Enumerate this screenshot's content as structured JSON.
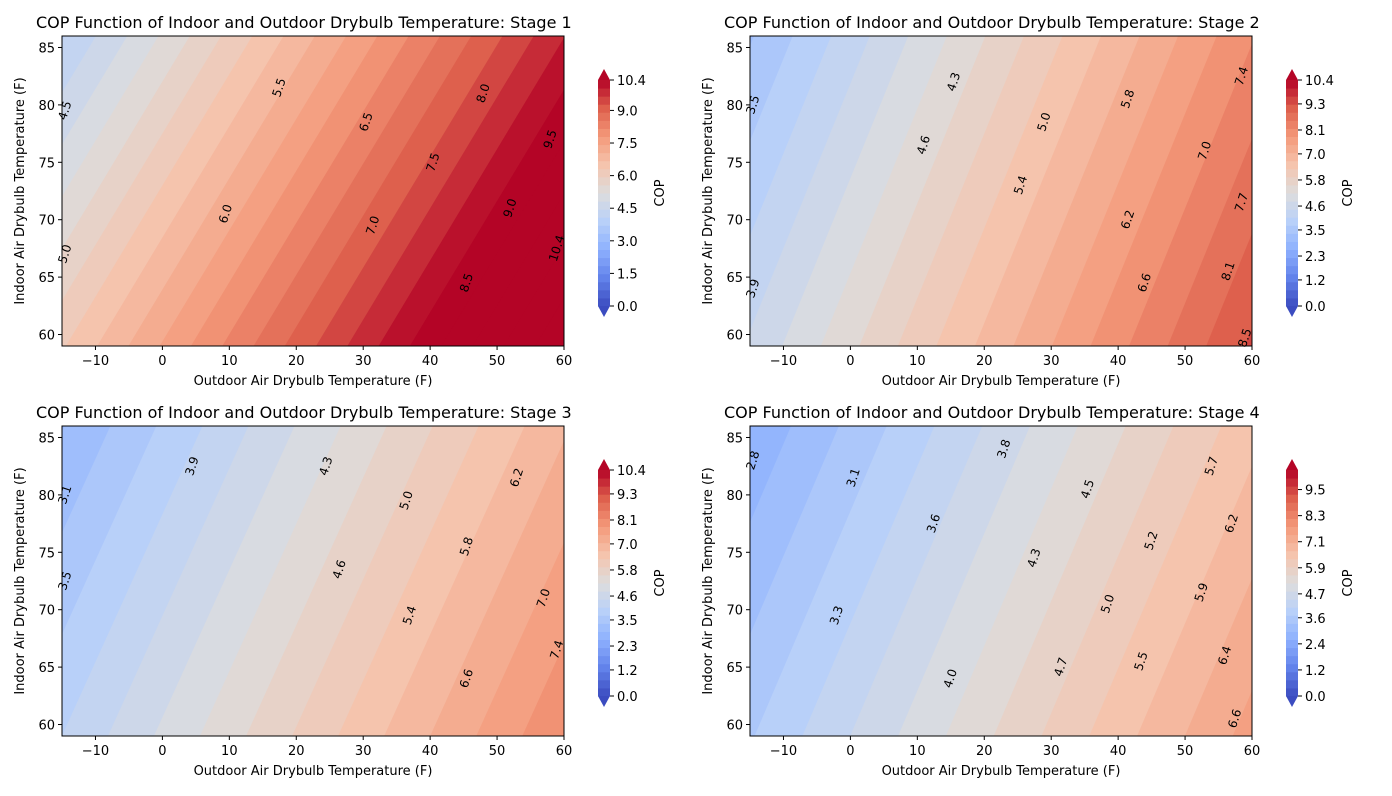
{
  "chart_data": [
    {
      "type": "contourf",
      "title": "COP Function of Indoor and Outdoor Drybulb Temperature: Stage 1",
      "xlabel": "Outdoor Air Drybulb Temperature (F)",
      "ylabel": "Indoor Air Drybulb Temperature (F)",
      "xlim": [
        -15,
        60
      ],
      "ylim": [
        59,
        86
      ],
      "xticks": [
        -10,
        0,
        10,
        20,
        30,
        40,
        50,
        60
      ],
      "yticks": [
        60,
        65,
        70,
        75,
        80,
        85
      ],
      "colormap": "coolwarm",
      "colorbar": {
        "label": "COP",
        "range": [
          0.0,
          10.4
        ],
        "ticks": [
          0.0,
          1.5,
          3.0,
          4.5,
          6.0,
          7.5,
          9.0,
          10.4
        ],
        "extend": "both"
      },
      "contour_labels": [
        {
          "value": "4.5",
          "x": -14.5,
          "y": 79.5
        },
        {
          "value": "5.0",
          "x": -14.5,
          "y": 67
        },
        {
          "value": "5.5",
          "x": 17.5,
          "y": 81.5
        },
        {
          "value": "6.0",
          "x": 9.5,
          "y": 70.5
        },
        {
          "value": "6.5",
          "x": 30.5,
          "y": 78.5
        },
        {
          "value": "7.0",
          "x": 31.5,
          "y": 69.5
        },
        {
          "value": "7.5",
          "x": 40.5,
          "y": 75
        },
        {
          "value": "8.0",
          "x": 48,
          "y": 81
        },
        {
          "value": "8.5",
          "x": 45.5,
          "y": 64.5
        },
        {
          "value": "9.0",
          "x": 52,
          "y": 71
        },
        {
          "value": "9.5",
          "x": 58,
          "y": 77
        },
        {
          "value": "10.4",
          "x": 59,
          "y": 67.5
        }
      ],
      "levels_min": 4.0,
      "levels_max": 10.4,
      "field": {
        "z_at_xmin_ymax": 4.0,
        "z_at_xmax_ymin": 10.4,
        "x_gain": 0.0795,
        "y_gain": -0.082,
        "ref_x": -15,
        "ref_y": 86,
        "ref_z": 4.05
      }
    },
    {
      "type": "contourf",
      "title": "COP Function of Indoor and Outdoor Drybulb Temperature: Stage 2",
      "xlabel": "Outdoor Air Drybulb Temperature (F)",
      "ylabel": "Indoor Air Drybulb Temperature (F)",
      "xlim": [
        -15,
        60
      ],
      "ylim": [
        59,
        86
      ],
      "xticks": [
        -10,
        0,
        10,
        20,
        30,
        40,
        50,
        60
      ],
      "yticks": [
        60,
        65,
        70,
        75,
        80,
        85
      ],
      "colormap": "coolwarm",
      "colorbar": {
        "label": "COP",
        "range": [
          0.0,
          10.4
        ],
        "ticks": [
          0.0,
          1.2,
          2.3,
          3.5,
          4.6,
          5.8,
          7.0,
          8.1,
          9.3,
          10.4
        ],
        "extend": "both"
      },
      "contour_labels": [
        {
          "value": "3.5",
          "x": -14.5,
          "y": 80
        },
        {
          "value": "3.9",
          "x": -14.5,
          "y": 64
        },
        {
          "value": "4.3",
          "x": 15.5,
          "y": 82
        },
        {
          "value": "4.6",
          "x": 11,
          "y": 76.5
        },
        {
          "value": "5.0",
          "x": 29,
          "y": 78.5
        },
        {
          "value": "5.4",
          "x": 25.5,
          "y": 73
        },
        {
          "value": "5.8",
          "x": 41.5,
          "y": 80.5
        },
        {
          "value": "6.2",
          "x": 41.5,
          "y": 70
        },
        {
          "value": "6.6",
          "x": 44,
          "y": 64.5
        },
        {
          "value": "7.0",
          "x": 53,
          "y": 76
        },
        {
          "value": "7.4",
          "x": 58.5,
          "y": 82.5
        },
        {
          "value": "7.7",
          "x": 58.5,
          "y": 71.5
        },
        {
          "value": "8.1",
          "x": 56.5,
          "y": 65.5
        },
        {
          "value": "8.5",
          "x": 59,
          "y": 59.7
        }
      ],
      "field": {
        "ref_x": -15,
        "ref_y": 86,
        "ref_z": 3.3,
        "x_gain": 0.0645,
        "y_gain": -0.045
      }
    },
    {
      "type": "contourf",
      "title": "COP Function of Indoor and Outdoor Drybulb Temperature: Stage 3",
      "xlabel": "Outdoor Air Drybulb Temperature (F)",
      "ylabel": "Indoor Air Drybulb Temperature (F)",
      "xlim": [
        -15,
        60
      ],
      "ylim": [
        59,
        86
      ],
      "xticks": [
        -10,
        0,
        10,
        20,
        30,
        40,
        50,
        60
      ],
      "yticks": [
        60,
        65,
        70,
        75,
        80,
        85
      ],
      "colormap": "coolwarm",
      "colorbar": {
        "label": "COP",
        "range": [
          0.0,
          10.4
        ],
        "ticks": [
          0.0,
          1.2,
          2.3,
          3.5,
          4.6,
          5.8,
          7.0,
          8.1,
          9.3,
          10.4
        ],
        "extend": "both"
      },
      "contour_labels": [
        {
          "value": "3.1",
          "x": -14.5,
          "y": 80
        },
        {
          "value": "3.5",
          "x": -14.5,
          "y": 72.5
        },
        {
          "value": "3.9",
          "x": 4.5,
          "y": 82.5
        },
        {
          "value": "4.3",
          "x": 24.5,
          "y": 82.5
        },
        {
          "value": "4.6",
          "x": 26.5,
          "y": 73.5
        },
        {
          "value": "5.0",
          "x": 36.5,
          "y": 79.5
        },
        {
          "value": "5.4",
          "x": 37,
          "y": 69.5
        },
        {
          "value": "5.8",
          "x": 45.5,
          "y": 75.5
        },
        {
          "value": "6.2",
          "x": 53,
          "y": 81.5
        },
        {
          "value": "6.6",
          "x": 45.5,
          "y": 64
        },
        {
          "value": "7.0",
          "x": 57,
          "y": 71
        },
        {
          "value": "7.4",
          "x": 59,
          "y": 66.5
        }
      ],
      "field": {
        "ref_x": -15,
        "ref_y": 86,
        "ref_z": 2.95,
        "x_gain": 0.054,
        "y_gain": -0.042
      }
    },
    {
      "type": "contourf",
      "title": "COP Function of Indoor and Outdoor Drybulb Temperature: Stage 4",
      "xlabel": "Outdoor Air Drybulb Temperature (F)",
      "ylabel": "Indoor Air Drybulb Temperature (F)",
      "xlim": [
        -15,
        60
      ],
      "ylim": [
        59,
        86
      ],
      "xticks": [
        -10,
        0,
        10,
        20,
        30,
        40,
        50,
        60
      ],
      "yticks": [
        60,
        65,
        70,
        75,
        80,
        85
      ],
      "colormap": "coolwarm",
      "colorbar": {
        "label": "COP",
        "range": [
          0.0,
          10.4
        ],
        "ticks": [
          0.0,
          1.2,
          2.4,
          3.6,
          4.7,
          5.9,
          7.1,
          8.3,
          9.5
        ],
        "extend": "both"
      },
      "contour_labels": [
        {
          "value": "2.8",
          "x": -14.5,
          "y": 83
        },
        {
          "value": "3.1",
          "x": 0.5,
          "y": 81.5
        },
        {
          "value": "3.3",
          "x": -2,
          "y": 69.5
        },
        {
          "value": "3.6",
          "x": 12.5,
          "y": 77.5
        },
        {
          "value": "3.8",
          "x": 23,
          "y": 84
        },
        {
          "value": "4.0",
          "x": 15,
          "y": 64
        },
        {
          "value": "4.3",
          "x": 27.5,
          "y": 74.5
        },
        {
          "value": "4.5",
          "x": 35.5,
          "y": 80.5
        },
        {
          "value": "4.7",
          "x": 31.5,
          "y": 65
        },
        {
          "value": "5.0",
          "x": 38.5,
          "y": 70.5
        },
        {
          "value": "5.2",
          "x": 45,
          "y": 76
        },
        {
          "value": "5.5",
          "x": 43.5,
          "y": 65.5
        },
        {
          "value": "5.7",
          "x": 54,
          "y": 82.5
        },
        {
          "value": "5.9",
          "x": 52.5,
          "y": 71.5
        },
        {
          "value": "6.2",
          "x": 57,
          "y": 77.5
        },
        {
          "value": "6.4",
          "x": 56,
          "y": 66
        },
        {
          "value": "6.6",
          "x": 57.5,
          "y": 60.5
        }
      ],
      "field": {
        "ref_x": -15,
        "ref_y": 86,
        "ref_z": 2.65,
        "x_gain": 0.052,
        "y_gain": -0.038
      }
    }
  ]
}
